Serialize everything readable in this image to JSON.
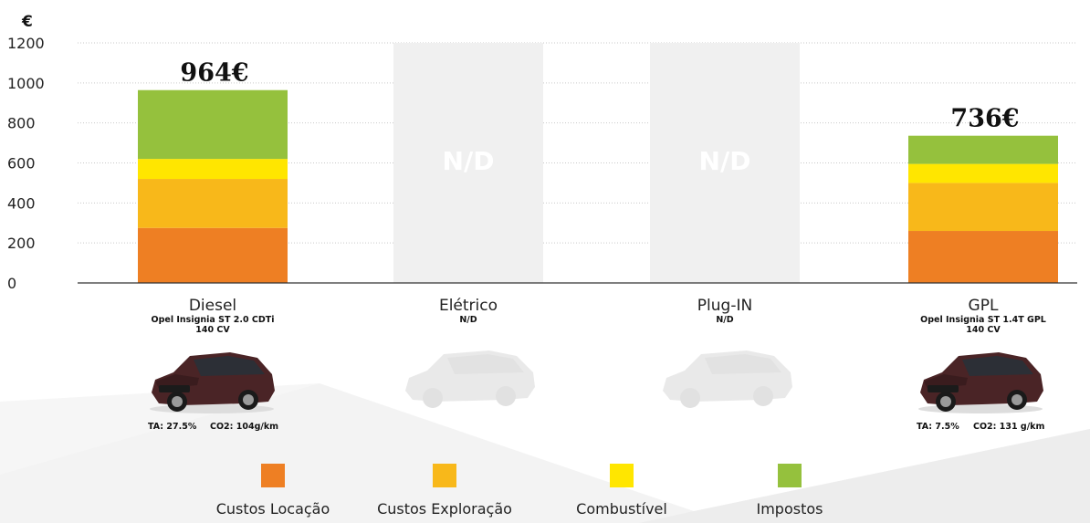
{
  "chart_data": {
    "type": "bar",
    "stacked": true,
    "y_unit": "€",
    "ylim": [
      0,
      1200
    ],
    "y_ticks": [
      "0",
      "200",
      "400",
      "600",
      "800",
      "1000",
      "1200"
    ],
    "grid": true,
    "categories": [
      "Diesel",
      "Elétrico",
      "Plug-IN",
      "GPL"
    ],
    "series": [
      {
        "name": "Custos Locação",
        "color": "#ee7f23",
        "values": [
          275,
          null,
          null,
          260
        ]
      },
      {
        "name": "Custos Exploração",
        "color": "#f8b81a",
        "values": [
          245,
          null,
          null,
          240
        ]
      },
      {
        "name": "Combustível",
        "color": "#ffe600",
        "values": [
          100,
          null,
          null,
          95
        ]
      },
      {
        "name": "Impostos",
        "color": "#95c13d",
        "values": [
          344,
          null,
          null,
          141
        ]
      }
    ],
    "totals": [
      "964€",
      null,
      null,
      "736€"
    ],
    "unavailable_label": "N/D",
    "unavailable": [
      false,
      true,
      true,
      false
    ]
  },
  "vehicles": [
    {
      "name": "Diesel",
      "model": "Opel Insignia ST 2.0 CDTi",
      "power": "140 CV",
      "ta": "TA: 27.5%",
      "co2": "CO2: 104g/km",
      "available": true
    },
    {
      "name": "Elétrico",
      "model": "N/D",
      "power": "",
      "ta": "",
      "co2": "",
      "available": false
    },
    {
      "name": "Plug-IN",
      "model": "N/D",
      "power": "",
      "ta": "",
      "co2": "",
      "available": false
    },
    {
      "name": "GPL",
      "model": "Opel Insignia ST 1.4T GPL",
      "power": "140 CV",
      "ta": "TA: 7.5%",
      "co2": "CO2: 131 g/km",
      "available": true
    }
  ],
  "legend": [
    {
      "label": "Custos Locação",
      "color": "#ee7f23"
    },
    {
      "label": "Custos Exploração",
      "color": "#f8b81a"
    },
    {
      "label": "Combustível",
      "color": "#ffe600"
    },
    {
      "label": "Impostos",
      "color": "#95c13d"
    }
  ],
  "colors": {
    "placeholder": "#f0f0f0",
    "car_body": "#4a2426",
    "car_ghost": "#e9e9e9"
  }
}
